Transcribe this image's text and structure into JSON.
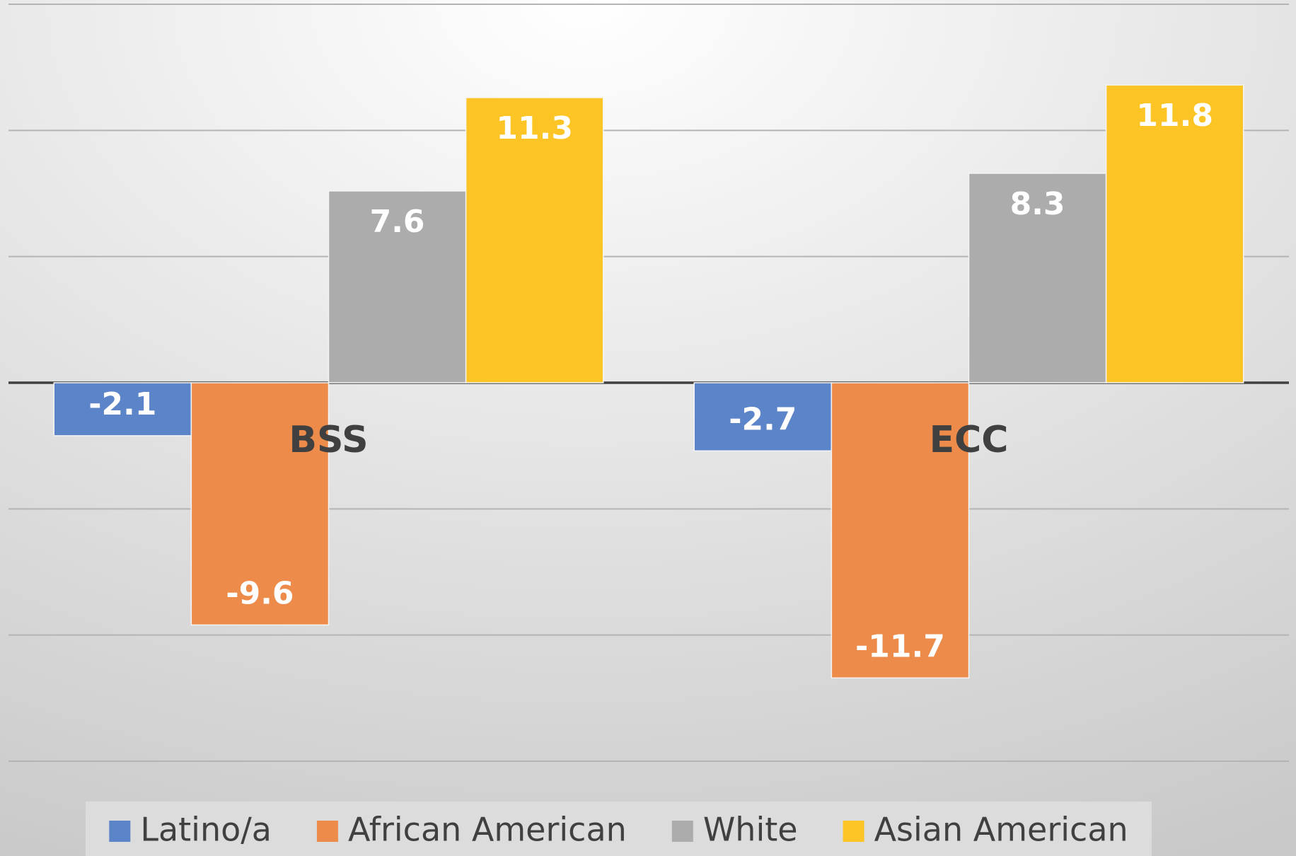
{
  "chart_data": {
    "type": "bar",
    "categories": [
      "BSS",
      "ECC"
    ],
    "series": [
      {
        "name": "Latino/a",
        "color": "#5b84c9",
        "values": [
          -2.1,
          -2.7
        ]
      },
      {
        "name": "African American",
        "color": "#ec8b4a",
        "values": [
          -9.6,
          -11.7
        ]
      },
      {
        "name": "White",
        "color": "#acacac",
        "values": [
          7.6,
          8.3
        ]
      },
      {
        "name": "Asian American",
        "color": "#fcc424",
        "values": [
          11.3,
          11.8
        ]
      }
    ],
    "ylim": [
      -15,
      15
    ],
    "yticks": [
      -15,
      -10,
      -5,
      0,
      5,
      10,
      15
    ],
    "grid": true,
    "legend": "bottom"
  }
}
